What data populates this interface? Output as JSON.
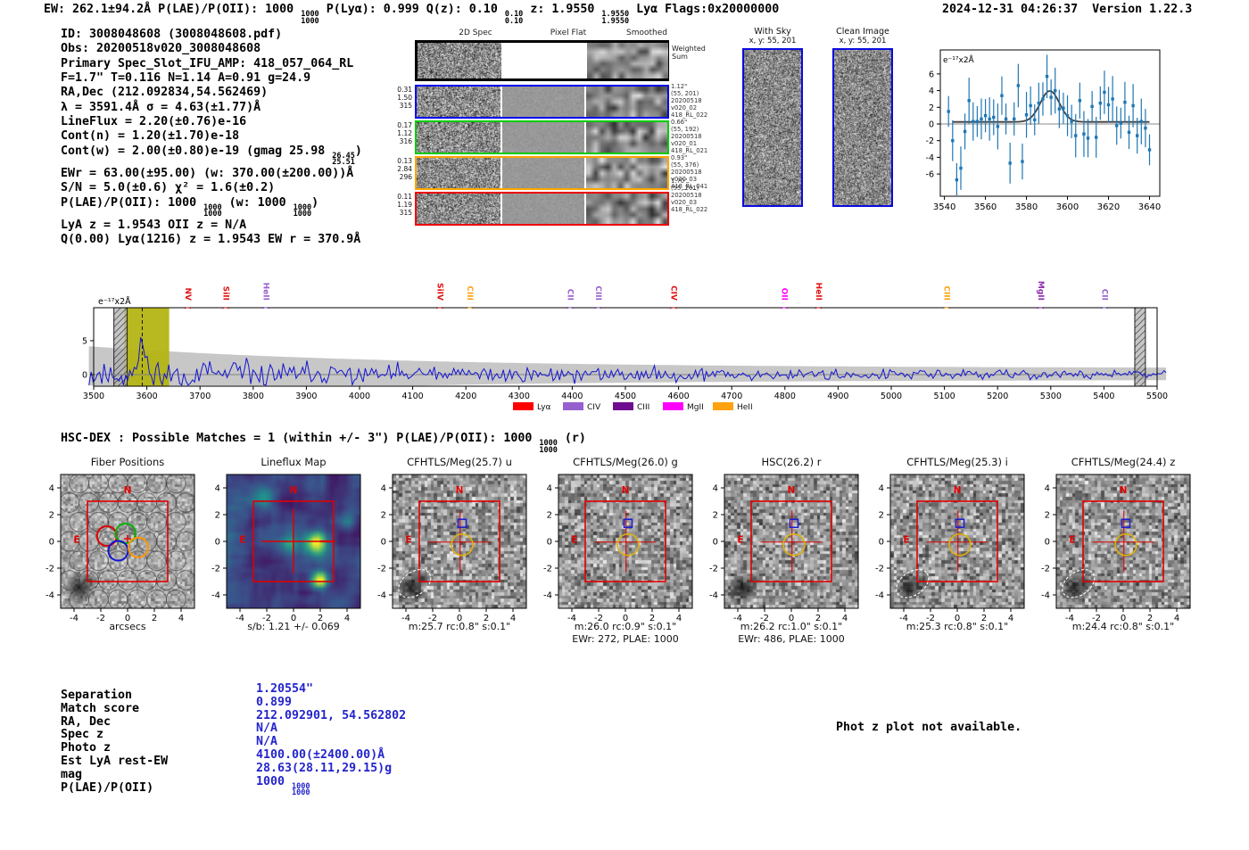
{
  "header": {
    "left": "EW: 262.1±94.2Å  P(LAE)/P(OII): 1000 ⟦1000/1000⟧  P(Lyα): 0.999  Q(z): 0.10 ⟦0.10/0.10⟧  z: 1.9550 ⟦1.9550/1.9550⟧ Lyα  Flags:0x20000000",
    "datetime": "2024-12-31 04:26:37",
    "version": "Version 1.22.3"
  },
  "info_lines": [
    "ID: 3008048608 (3008048608.pdf)",
    "Obs: 20200518v020_3008048608",
    "Primary Spec_Slot_IFU_AMP: 418_057_064_RL",
    "F=1.7\"  T=0.116  N=1.14  A=0.91  g=24.9",
    "RA,Dec (212.092834,54.562469)",
    "λ = 3591.4Å  σ = 4.63(±1.77)Å",
    "LineFlux = 2.20(±0.76)e-16",
    "Cont(n) = 1.20(±1.70)e-18",
    "Cont(w) = 2.00(±0.80)e-19 (gmag 25.98 ⟦26.45/25.51⟧)",
    "EWr = 63.00(±95.00) (w: 370.00(±200.00))Å",
    "S/N = 5.0(±0.6)  χ² = 1.6(±0.2)",
    "P(LAE)/P(OII): 1000 ⟦1000/1000⟧ (w: 1000 ⟦1000/1000⟧)",
    "LyA z = 1.9543  OII z = N/A",
    "Q(0.00) Lyα(1216) z = 1.9543  EW r = 370.9Å"
  ],
  "spec2d": {
    "col_headers": [
      "2D Spec",
      "Pixel Flat",
      "Smoothed"
    ],
    "weighted_label": [
      "Weighted",
      "Sum"
    ],
    "rows": [
      {
        "border": "#0000ee",
        "left": [
          "0.31",
          "1.50",
          "315"
        ],
        "right": [
          "1.12\"",
          "(55, 201)",
          "20200518",
          "v020_02",
          "418_RL_022"
        ]
      },
      {
        "border": "#00cc00",
        "left": [
          "0.17",
          "1.12",
          "316"
        ],
        "right": [
          "0.66\"",
          "(55, 192)",
          "20200518",
          "v020_01",
          "418_RL_021"
        ]
      },
      {
        "border": "#ffa500",
        "left": [
          "0.13",
          "2.84",
          "296"
        ],
        "right": [
          "0.93\"",
          "(55, 376)",
          "20200518",
          "v020_03",
          "418_RL_041"
        ]
      },
      {
        "border": "#ee0000",
        "left": [
          "0.11",
          "1.19",
          "315"
        ],
        "right": [
          "1.70\"",
          "(55, 201)",
          "20200518",
          "v020_03",
          "418_RL_022"
        ]
      }
    ]
  },
  "stamps": [
    {
      "title": "With Sky",
      "subtitle": "x, y: 55, 201"
    },
    {
      "title": "Clean Image",
      "subtitle": "x, y: 55, 201"
    }
  ],
  "hsc_line": "HSC-DEX : Possible Matches = 1 (within +/- 3\")  P(LAE)/P(OII): 1000 ⟦1000/1000⟧ (r)",
  "cutouts": {
    "axis_ticks": [
      -4,
      -2,
      0,
      2,
      4
    ],
    "compass_n": "N",
    "compass_e": "E",
    "panels": [
      {
        "title": "Fiber Positions",
        "caption": "arcsecs",
        "type": "fiber",
        "blob": true
      },
      {
        "title": "Lineflux Map",
        "caption": "s/b: 1.21 +/- 0.069",
        "type": "map"
      },
      {
        "title": "CFHTLS/Meg(25.7) u",
        "caption": "m:25.7 rc:0.8\"  s:0.1\"",
        "type": "img",
        "blob": true,
        "ellipse": true
      },
      {
        "title": "CFHTLS/Meg(26.0) g",
        "caption": "m:26.0 rc:0.9\"  s:0.1\"",
        "caption2": "EWr: 272, PLAE: 1000",
        "type": "img"
      },
      {
        "title": "HSC(26.2) r",
        "caption": "m:26.2 rc:1.0\"  s:0.1\"",
        "caption2": "EWr: 486, PLAE: 1000",
        "type": "img",
        "blob": true
      },
      {
        "title": "CFHTLS/Meg(25.3) i",
        "caption": "m:25.3 rc:0.8\"  s:0.1\"",
        "type": "img",
        "blob": true,
        "ellipse": true
      },
      {
        "title": "CFHTLS/Meg(24.4) z",
        "caption": "m:24.4 rc:0.8\"  s:0.1\"",
        "type": "img",
        "blob": true,
        "ellipse": true
      }
    ]
  },
  "match_table": {
    "value_color": "#2424cc",
    "rows": [
      {
        "label": "Separation",
        "value": "1.20554\""
      },
      {
        "label": "Match score",
        "value": "0.899"
      },
      {
        "label": "RA, Dec",
        "value": "212.092901, 54.562802"
      },
      {
        "label": "Spec z",
        "value": "N/A"
      },
      {
        "label": "Photo z",
        "value": "N/A"
      },
      {
        "label": "Est LyA rest-EW",
        "value": "4100.00(±2400.00)Å"
      },
      {
        "label": "mag",
        "value": "28.63(28.11,29.15)g"
      },
      {
        "label": "P(LAE)/P(OII)",
        "value": "1000 ⟦1000/1000⟧"
      }
    ]
  },
  "photz_note": "Phot z plot not available.",
  "chart_data": [
    {
      "type": "scatter",
      "name": "zoomed_emission_line_fit",
      "unit_label": "e⁻¹⁷x2Å",
      "x_ticks": [
        3540,
        3560,
        3580,
        3600,
        3620,
        3640
      ],
      "y_ticks": [
        6,
        4,
        2,
        0,
        -2,
        -4,
        -6
      ],
      "xlim": [
        3538,
        3645
      ],
      "ylim": [
        -8.6,
        8.9
      ],
      "marker_color": "#1f77b4",
      "fit_color": "#3f3f3f",
      "fit": {
        "center": 3591.4,
        "sigma": 4.63,
        "amplitude": 3.75,
        "baseline": 0.25
      },
      "err": 2.3,
      "x": [
        3542,
        3544,
        3546,
        3548,
        3550,
        3552,
        3554,
        3556,
        3558,
        3560,
        3562,
        3564,
        3566,
        3568,
        3570,
        3572,
        3574,
        3576,
        3578,
        3580,
        3582,
        3584,
        3586,
        3588,
        3590,
        3592,
        3594,
        3596,
        3598,
        3600,
        3602,
        3604,
        3606,
        3608,
        3610,
        3612,
        3614,
        3616,
        3618,
        3620,
        3622,
        3624,
        3626,
        3628,
        3630,
        3632,
        3634,
        3636,
        3638,
        3640
      ],
      "y": [
        1.5,
        -2.0,
        -6.7,
        -5.3,
        -0.9,
        2.8,
        0.3,
        0.3,
        0.6,
        1.0,
        0.6,
        0.8,
        -0.3,
        3.4,
        0.6,
        -4.7,
        0.6,
        4.6,
        -4.5,
        1.1,
        2.2,
        0.5,
        2.5,
        3.0,
        5.7,
        3.2,
        4.0,
        1.8,
        1.9,
        1.0,
        0.3,
        -1.4,
        2.8,
        -1.2,
        -1.7,
        2.1,
        -1.6,
        2.5,
        3.8,
        2.3,
        3.0,
        -0.2,
        0.1,
        2.6,
        -1.0,
        2.2,
        -1.4,
        0.3,
        -0.5,
        -3.1
      ]
    },
    {
      "type": "line",
      "name": "full_spectrum",
      "unit_label": "e⁻¹⁷x2Å",
      "xlim": [
        3491,
        5517
      ],
      "x_tick_start": 3500,
      "x_tick_end": 5500,
      "x_tick_step": 100,
      "y_ticks": [
        0,
        5
      ],
      "ylim": [
        -1.7,
        9.9
      ],
      "line_color": "#1414d2",
      "envelope_color": "#b9b9b9",
      "band_color": "#b4b414",
      "yellow_band": [
        3558,
        3642
      ],
      "hatch_bands": [
        [
          3538,
          3563
        ],
        [
          5458,
          5478
        ]
      ],
      "dashed_line": 3591.4,
      "peak": {
        "center": 3591.4,
        "sigma": 6.0,
        "amplitude": 5.0
      },
      "sigma_profile": {
        "base": 0.95,
        "amp": 3.3,
        "scale": 560
      },
      "noise_seed": 11,
      "n_points": 500,
      "markers": [
        {
          "label": "NV",
          "wave": 3666,
          "color": "#e01212"
        },
        {
          "label": "SiII",
          "wave": 3737,
          "color": "#e01212"
        },
        {
          "label": "HeII",
          "wave": 3813,
          "color": "#9661cf"
        },
        {
          "label": "SiIV",
          "wave": 4140,
          "color": "#e01212"
        },
        {
          "label": "CIII",
          "wave": 4196,
          "color": "#ffa211"
        },
        {
          "label": "CII",
          "wave": 4385,
          "color": "#9661cf"
        },
        {
          "label": "CIII",
          "wave": 4438,
          "color": "#9661cf"
        },
        {
          "label": "CIV",
          "wave": 4580,
          "color": "#e01212"
        },
        {
          "label": "OII",
          "wave": 4788,
          "color": "#ff00ff"
        },
        {
          "label": "HeII",
          "wave": 4852,
          "color": "#e01212"
        },
        {
          "label": "CIII",
          "wave": 5093,
          "color": "#ffa211"
        },
        {
          "label": "MgII",
          "wave": 5270,
          "color": "#8b2bab"
        },
        {
          "label": "CII",
          "wave": 5390,
          "color": "#9661cf"
        }
      ],
      "legend": [
        {
          "label": "Lyα",
          "color": "#ff0000"
        },
        {
          "label": "CIV",
          "color": "#9661cf"
        },
        {
          "label": "CIII",
          "color": "#6e0d8e"
        },
        {
          "label": "MgII",
          "color": "#ff00ff"
        },
        {
          "label": "HeII",
          "color": "#ffa211"
        }
      ]
    }
  ]
}
